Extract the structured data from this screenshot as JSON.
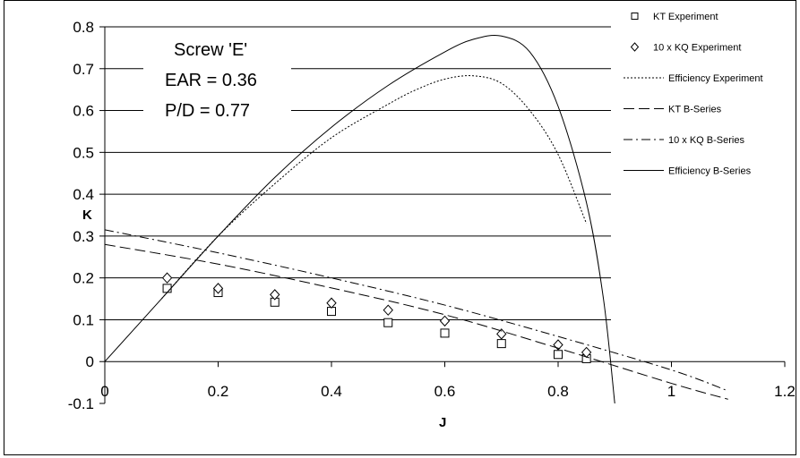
{
  "chart_data": {
    "type": "line",
    "xlabel": "J",
    "ylabel": "K",
    "xlim": [
      0,
      1.2
    ],
    "ylim": [
      -0.1,
      0.8
    ],
    "x_ticks": [
      "0",
      "0.2",
      "0.4",
      "0.6",
      "0.8",
      "1",
      "1.2"
    ],
    "y_ticks": [
      "-0.1",
      "0",
      "0.1",
      "0.2",
      "0.3",
      "0.4",
      "0.5",
      "0.6",
      "0.7",
      "0.8"
    ],
    "grid": "horizontal major",
    "legend_position": "right",
    "annotation": [
      "Screw 'E'",
      "EAR = 0.36",
      "P/D = 0.77"
    ],
    "series": [
      {
        "name": "KT Experiment",
        "style": "square-marker",
        "x": [
          0.11,
          0.2,
          0.3,
          0.4,
          0.5,
          0.6,
          0.7,
          0.8,
          0.85
        ],
        "y": [
          0.175,
          0.165,
          0.142,
          0.12,
          0.093,
          0.068,
          0.043,
          0.017,
          0.007
        ]
      },
      {
        "name": "10 x KQ Experiment",
        "style": "diamond-marker",
        "x": [
          0.11,
          0.2,
          0.3,
          0.4,
          0.5,
          0.6,
          0.7,
          0.8,
          0.85
        ],
        "y": [
          0.2,
          0.175,
          0.16,
          0.14,
          0.123,
          0.097,
          0.066,
          0.04,
          0.022
        ]
      },
      {
        "name": "Efficiency Experiment",
        "style": "dotted",
        "x": [
          0.1,
          0.2,
          0.3,
          0.4,
          0.5,
          0.55,
          0.6,
          0.65,
          0.7,
          0.75,
          0.8,
          0.85
        ],
        "y": [
          0.15,
          0.3,
          0.425,
          0.535,
          0.615,
          0.65,
          0.675,
          0.683,
          0.665,
          0.6,
          0.495,
          0.33
        ]
      },
      {
        "name": "KT B-Series",
        "style": "dashed",
        "x": [
          0,
          0.2,
          0.4,
          0.6,
          0.8,
          1.0,
          1.1
        ],
        "y": [
          0.28,
          0.233,
          0.176,
          0.112,
          0.032,
          -0.052,
          -0.09
        ]
      },
      {
        "name": "10 x KQ B-Series",
        "style": "dash-dot",
        "x": [
          0,
          0.2,
          0.4,
          0.6,
          0.8,
          1.0,
          1.1
        ],
        "y": [
          0.315,
          0.26,
          0.2,
          0.135,
          0.06,
          -0.02,
          -0.07
        ]
      },
      {
        "name": "Efficiency B-Series",
        "style": "solid",
        "x": [
          0,
          0.1,
          0.2,
          0.3,
          0.4,
          0.5,
          0.6,
          0.65,
          0.7,
          0.75,
          0.8,
          0.85,
          0.88,
          0.9
        ],
        "y": [
          0,
          0.15,
          0.3,
          0.44,
          0.56,
          0.66,
          0.74,
          0.77,
          0.778,
          0.74,
          0.61,
          0.38,
          0.15,
          -0.1
        ]
      }
    ]
  }
}
